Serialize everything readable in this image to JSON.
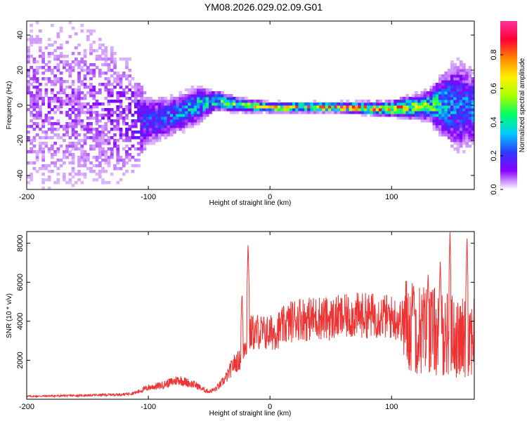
{
  "title": "YM08.2026.029.02.09.G01",
  "chart_data": [
    {
      "type": "heatmap",
      "xlabel": "Height of straight line (km)",
      "ylabel": "Frequency (Hz)",
      "xlim": [
        -200,
        168
      ],
      "ylim": [
        -48,
        48
      ],
      "xticks": [
        -200,
        -100,
        0,
        100
      ],
      "xtick_labels": [
        "-200",
        "-100",
        "0",
        "100"
      ],
      "yticks": [
        -40,
        -20,
        0,
        20,
        40
      ],
      "ytick_labels": [
        "-40",
        "-20",
        "0",
        "20",
        "40"
      ],
      "colorbar": {
        "label": "Normalized spectral amplitude",
        "range": [
          0,
          1
        ],
        "ticks": [
          0.0,
          0.2,
          0.4,
          0.6,
          0.8
        ],
        "tick_labels": [
          "0.0",
          "0.2",
          "0.4",
          "0.6",
          "0.8"
        ],
        "colors": [
          "#ffffff",
          "#8a00ff",
          "#2a3bff",
          "#00ccff",
          "#00ff66",
          "#a8ff00",
          "#ffee00",
          "#ff8800",
          "#ff0033",
          "#ff3399"
        ]
      },
      "profile": [
        {
          "x": -200,
          "center": 0,
          "spread": 48,
          "amp": 0.08
        },
        {
          "x": -150,
          "center": 0,
          "spread": 46,
          "amp": 0.08
        },
        {
          "x": -115,
          "center": -8,
          "spread": 30,
          "amp": 0.12
        },
        {
          "x": -100,
          "center": -9,
          "spread": 10,
          "amp": 0.22
        },
        {
          "x": -75,
          "center": -5,
          "spread": 8,
          "amp": 0.3
        },
        {
          "x": -60,
          "center": 0,
          "spread": 8,
          "amp": 0.35
        },
        {
          "x": -45,
          "center": 3,
          "spread": 4,
          "amp": 0.45
        },
        {
          "x": -25,
          "center": 0,
          "spread": 3,
          "amp": 0.5
        },
        {
          "x": 0,
          "center": -1,
          "spread": 2,
          "amp": 0.75
        },
        {
          "x": 50,
          "center": -1,
          "spread": 2,
          "amp": 0.8
        },
        {
          "x": 100,
          "center": -2,
          "spread": 3,
          "amp": 0.75
        },
        {
          "x": 130,
          "center": 0,
          "spread": 6,
          "amp": 0.5
        },
        {
          "x": 155,
          "center": 0,
          "spread": 20,
          "amp": 0.25
        },
        {
          "x": 168,
          "center": -2,
          "spread": 15,
          "amp": 0.3
        }
      ]
    },
    {
      "type": "line",
      "xlabel": "Height of straight line (km)",
      "ylabel": "SNR (10 * v/v)",
      "xlim": [
        -200,
        168
      ],
      "ylim": [
        0,
        8600
      ],
      "xticks": [
        -200,
        -100,
        0,
        100
      ],
      "xtick_labels": [
        "-200",
        "-100",
        "0",
        "100"
      ],
      "yticks": [
        2000,
        4000,
        6000,
        8000
      ],
      "ytick_labels": [
        "2000",
        "4000",
        "6000",
        "8000"
      ],
      "color": "#ee3333",
      "series": [
        {
          "name": "SNR",
          "x": [
            -200,
            -150,
            -120,
            -110,
            -100,
            -90,
            -80,
            -75,
            -70,
            -65,
            -60,
            -55,
            -50,
            -45,
            -40,
            -35,
            -30,
            -25,
            -22,
            -20,
            -18,
            -15,
            -12,
            -10,
            -5,
            0,
            5,
            10,
            15,
            20,
            25,
            30,
            40,
            50,
            55,
            60,
            70,
            80,
            90,
            100,
            110,
            115,
            120,
            125,
            130,
            135,
            140,
            145,
            150,
            155,
            160,
            165,
            168
          ],
          "y": [
            150,
            200,
            250,
            350,
            600,
            700,
            900,
            1000,
            900,
            800,
            700,
            500,
            400,
            500,
            800,
            1200,
            1800,
            2000,
            2500,
            3000,
            3000,
            3500,
            3300,
            3500,
            3400,
            3400,
            3500,
            3700,
            3900,
            4100,
            4200,
            4100,
            4200,
            4100,
            4200,
            4200,
            4300,
            4300,
            4300,
            4200,
            4000,
            3700,
            3700,
            3600,
            3600,
            3500,
            3300,
            3400,
            3300,
            3000,
            3200,
            3400,
            3400
          ]
        }
      ],
      "annotations": [
        {
          "x": -18,
          "peak": 8100
        },
        {
          "x": -23,
          "peak": 5500
        },
        {
          "x": 148,
          "peak": 8600
        },
        {
          "x": 162,
          "peak": 8300
        },
        {
          "x": 140,
          "peak": 7200
        },
        {
          "x": 130,
          "peak": 6500
        },
        {
          "x": 118,
          "peak": 6000
        }
      ]
    }
  ]
}
